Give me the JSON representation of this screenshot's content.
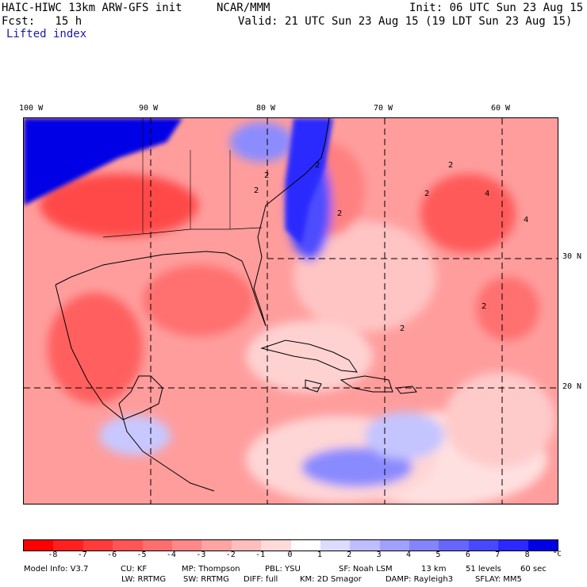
{
  "header": {
    "model_title": "HAIC-HIWC 13km ARW-GFS init",
    "org": "NCAR/MMM",
    "init": "Init: 06 UTC Sun 23 Aug 15",
    "fcst_label": "Fcst:   15 h",
    "valid": "Valid: 21 UTC Sun 23 Aug 15 (19 LDT Sun 23 Aug 15)",
    "field": "Lifted index"
  },
  "map": {
    "lon_labels": [
      "100 W",
      "90 W",
      "80 W",
      "70 W",
      "60 W"
    ],
    "lat_labels": [
      "30 N",
      "20 N"
    ],
    "contour_labels": [
      "2",
      "2",
      "2",
      "2",
      "2",
      "4",
      "2",
      "2",
      "4",
      "2"
    ]
  },
  "colorbar": {
    "ticks": [
      "-8",
      "-7",
      "-6",
      "-5",
      "-4",
      "-3",
      "-2",
      "-1",
      "0",
      "1",
      "2",
      "3",
      "4",
      "5",
      "6",
      "7",
      "8"
    ],
    "unit": "°C",
    "colors": [
      "#ff0000",
      "#ff2020",
      "#ff3b3b",
      "#ff5555",
      "#ff6e6e",
      "#ff8888",
      "#ffa3a3",
      "#ffbebe",
      "#ffdada",
      "#ffffff",
      "#dcdcff",
      "#bebeff",
      "#a0a0ff",
      "#8484ff",
      "#6666ff",
      "#4848ff",
      "#2a2aff",
      "#0000e6"
    ]
  },
  "model_info": {
    "line1": [
      "Model Info: V3.7",
      "CU: KF",
      "MP: Thompson",
      "PBL: YSU",
      "SF: Noah LSM",
      "13 km",
      "51 levels",
      "60 sec"
    ],
    "line2": [
      "LW: RRTMG",
      "SW: RRTMG",
      "DIFF: full",
      "KM: 2D Smagor",
      "DAMP: Rayleigh3",
      "SFLAY: MM5"
    ]
  }
}
